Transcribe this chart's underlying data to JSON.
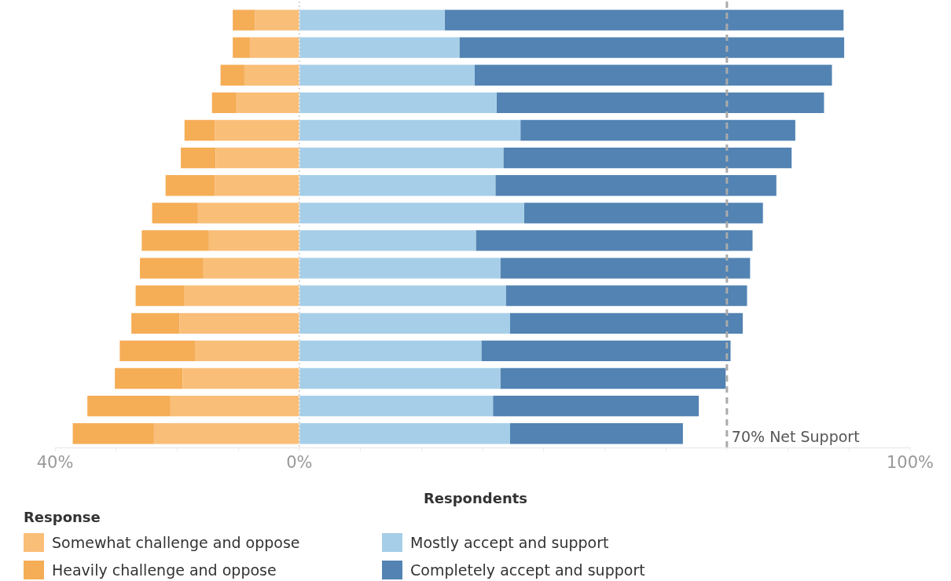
{
  "chart_data": {
    "type": "bar",
    "orientation": "horizontal",
    "stacked": true,
    "xlabel": "Respondents",
    "legend_title": "Response",
    "legend": "bottom left",
    "categories": [
      null,
      null,
      null,
      null,
      null,
      null,
      null,
      null,
      null,
      null,
      null,
      null,
      null,
      null,
      null,
      null
    ],
    "series": [
      {
        "name": "Somewhat challenge and oppose",
        "color": "#f9be78",
        "values": [
          -7.3,
          -8.1,
          -9.0,
          -10.3,
          -13.8,
          -13.7,
          -13.8,
          -16.6,
          -14.8,
          -15.7,
          -18.8,
          -19.6,
          -17.1,
          -19.1,
          -21.1,
          -23.8
        ]
      },
      {
        "name": "Heavily challenge and oppose",
        "color": "#f5ad56",
        "values": [
          -3.6,
          -2.8,
          -3.9,
          -4.0,
          -5.0,
          -5.7,
          -8.1,
          -7.5,
          -11.0,
          -10.4,
          -8.0,
          -7.9,
          -12.3,
          -11.1,
          -13.6,
          -13.3
        ]
      },
      {
        "name": "Mostly accept and support",
        "color": "#a6cee8",
        "values": [
          23.8,
          26.2,
          28.7,
          32.3,
          36.2,
          33.4,
          32.1,
          36.8,
          28.9,
          32.9,
          33.8,
          34.5,
          29.8,
          32.9,
          31.7,
          34.5
        ]
      },
      {
        "name": "Completely accept and support",
        "color": "#5283b3",
        "values": [
          65.3,
          63.0,
          58.5,
          53.6,
          45.0,
          47.2,
          46.0,
          39.1,
          45.3,
          40.9,
          39.5,
          38.1,
          40.8,
          36.9,
          33.7,
          28.3
        ]
      }
    ],
    "xlim": [
      -40,
      100
    ],
    "xticks": [
      {
        "value": -40,
        "label": "40%"
      },
      {
        "value": -30,
        "label": null
      },
      {
        "value": -20,
        "label": null
      },
      {
        "value": -10,
        "label": null
      },
      {
        "value": 0,
        "label": "0%"
      },
      {
        "value": 10,
        "label": null
      },
      {
        "value": 20,
        "label": null
      },
      {
        "value": 30,
        "label": null
      },
      {
        "value": 40,
        "label": null
      },
      {
        "value": 50,
        "label": null
      },
      {
        "value": 60,
        "label": null
      },
      {
        "value": 70,
        "label": null
      },
      {
        "value": 80,
        "label": null
      },
      {
        "value": 90,
        "label": null
      },
      {
        "value": 100,
        "label": "100%"
      }
    ],
    "ref_lines": [
      {
        "axis": "x",
        "value": 0,
        "label": null,
        "color": "#bbbbbb",
        "line_style": "dotted"
      },
      {
        "axis": "x",
        "value": 70,
        "label": "70% Net Support",
        "color": "#aaaaaa",
        "line_style": "dashed"
      }
    ]
  }
}
